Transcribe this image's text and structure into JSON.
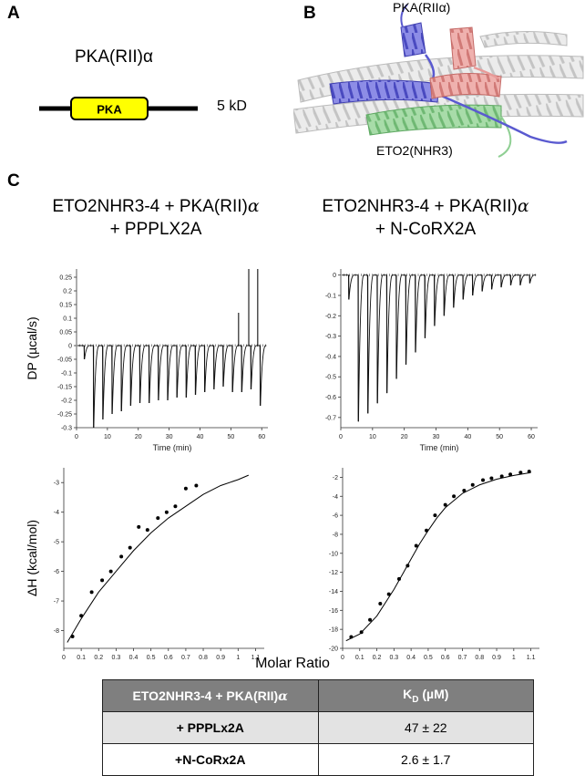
{
  "panels": {
    "a": {
      "letter": "A",
      "domain_title": "PKA(RII)α",
      "box_label": "PKA",
      "size_label": "5 kD",
      "box_color": "#ffff00"
    },
    "b": {
      "letter": "B",
      "label_top": "PKA(RIIα)",
      "label_bottom": "ETO2(NHR3)",
      "colors": {
        "pka_chain_1": "#6b6bd6",
        "pka_chain_2": "#e89a98",
        "eto2": "#8fcf93",
        "background_helices": "#d9d9d9"
      }
    },
    "c": {
      "letter": "C",
      "experiments": [
        {
          "line1": "ETO2NHR3-4 + PKA(RII)",
          "alpha": "α",
          "line2": "+ PPPLX2A"
        },
        {
          "line1": "ETO2NHR3-4 + PKA(RII)",
          "alpha": "α",
          "line2": "+ N-CoRX2A"
        }
      ]
    }
  },
  "chart_data": [
    {
      "type": "line",
      "title": "",
      "xlabel": "Time (min)",
      "ylabel": "DP (µcal/s)",
      "xlim": [
        0,
        62
      ],
      "ylim": [
        -0.3,
        0.28
      ],
      "xticks": [
        0,
        10,
        20,
        30,
        40,
        50,
        60
      ],
      "yticks": [
        -0.3,
        -0.25,
        -0.2,
        -0.15,
        -0.1,
        -0.05,
        0,
        0.05,
        0.1,
        0.15,
        0.2,
        0.25
      ],
      "ytick_labels": [
        "-0.3",
        "-0.25",
        "-0.2",
        "-0.15",
        "-0.1",
        "-0.05",
        "0",
        "0.05",
        "0.1",
        "0.15",
        "0.2",
        "0.25"
      ],
      "baseline": 0,
      "injection_times": [
        2.5,
        5.5,
        8.5,
        11.5,
        14.5,
        17.5,
        20.5,
        23.5,
        26.5,
        29.5,
        32.5,
        35.5,
        38.5,
        41.5,
        44.5,
        47.5,
        50.5,
        53.5,
        56.5,
        59.5
      ],
      "peak_values": [
        -0.05,
        -0.3,
        -0.27,
        -0.25,
        -0.24,
        -0.22,
        -0.21,
        -0.21,
        -0.2,
        -0.2,
        -0.19,
        -0.19,
        -0.18,
        -0.17,
        -0.16,
        -0.15,
        -0.17,
        -0.17,
        -0.16,
        -0.22
      ],
      "positive_spikes": [
        {
          "time": 52.5,
          "value": 0.12
        },
        {
          "time": 55.8,
          "value": 0.28
        },
        {
          "time": 58.7,
          "value": 0.28
        }
      ]
    },
    {
      "type": "line",
      "title": "",
      "xlabel": "Time (min)",
      "ylabel": "",
      "xlim": [
        0,
        62
      ],
      "ylim": [
        -0.75,
        0.03
      ],
      "xticks": [
        0,
        10,
        20,
        30,
        40,
        50,
        60
      ],
      "yticks": [
        -0.7,
        -0.6,
        -0.5,
        -0.4,
        -0.3,
        -0.2,
        -0.1,
        0
      ],
      "ytick_labels": [
        "-0.7",
        "-0.6",
        "-0.5",
        "-0.4",
        "-0.3",
        "-0.2",
        "-0.1",
        "0"
      ],
      "baseline": 0,
      "injection_times": [
        2.5,
        5.5,
        8.5,
        11.5,
        14.5,
        17.5,
        20.5,
        23.5,
        26.5,
        29.5,
        32.5,
        35.5,
        38.5,
        41.5,
        44.5,
        47.5,
        50.5,
        53.5,
        56.5,
        59.5
      ],
      "peak_values": [
        -0.12,
        -0.72,
        -0.68,
        -0.63,
        -0.58,
        -0.51,
        -0.44,
        -0.38,
        -0.31,
        -0.25,
        -0.2,
        -0.16,
        -0.12,
        -0.1,
        -0.08,
        -0.07,
        -0.06,
        -0.05,
        -0.05,
        -0.04
      ]
    },
    {
      "type": "scatter",
      "title": "",
      "xlabel": "Molar Ratio",
      "ylabel": "ΔH (kcal/mol)",
      "xlim": [
        0,
        1.15
      ],
      "ylim": [
        -8.6,
        -2.5
      ],
      "xticks": [
        0,
        0.1,
        0.2,
        0.3,
        0.4,
        0.5,
        0.6,
        0.7,
        0.8,
        0.9,
        1,
        1.1
      ],
      "xtick_labels": [
        "0",
        "0.1",
        "0.2",
        "0.3",
        "0.4",
        "0.5",
        "0.6",
        "0.7",
        "0.8",
        "0.9",
        "1",
        "1.1"
      ],
      "yticks": [
        -8,
        -7,
        -6,
        -5,
        -4,
        -3
      ],
      "ytick_labels": [
        "-8",
        "-7",
        "-6",
        "-5",
        "-4",
        "-3"
      ],
      "points": {
        "x": [
          0.05,
          0.1,
          0.16,
          0.22,
          0.27,
          0.33,
          0.38,
          0.43,
          0.48,
          0.54,
          0.59,
          0.64,
          0.7,
          0.76
        ],
        "y": [
          -8.2,
          -7.5,
          -6.7,
          -6.3,
          -6.0,
          -5.5,
          -5.2,
          -4.5,
          -4.6,
          -4.2,
          -4.0,
          -3.8,
          -3.2,
          -3.1
        ]
      },
      "fit": {
        "x": [
          0.02,
          0.1,
          0.2,
          0.3,
          0.4,
          0.5,
          0.6,
          0.7,
          0.8,
          0.9,
          1.0,
          1.06
        ],
        "y": [
          -8.4,
          -7.6,
          -6.7,
          -6.0,
          -5.3,
          -4.7,
          -4.2,
          -3.8,
          -3.4,
          -3.1,
          -2.9,
          -2.75
        ]
      }
    },
    {
      "type": "scatter",
      "title": "",
      "xlabel": "Molar Ratio",
      "ylabel": "",
      "xlim": [
        0,
        1.15
      ],
      "ylim": [
        -20,
        -1
      ],
      "xticks": [
        0,
        0.1,
        0.2,
        0.3,
        0.4,
        0.5,
        0.6,
        0.7,
        0.8,
        0.9,
        1,
        1.1
      ],
      "xtick_labels": [
        "0",
        "0.1",
        "0.2",
        "0.3",
        "0.4",
        "0.5",
        "0.6",
        "0.7",
        "0.8",
        "0.9",
        "1",
        "1.1"
      ],
      "yticks": [
        -20,
        -18,
        -16,
        -14,
        -12,
        -10,
        -8,
        -6,
        -4,
        -2
      ],
      "ytick_labels": [
        "-20",
        "-18",
        "-16",
        "-14",
        "-12",
        "-10",
        "-8",
        "-6",
        "-4",
        "-2"
      ],
      "points": {
        "x": [
          0.05,
          0.11,
          0.16,
          0.22,
          0.27,
          0.33,
          0.38,
          0.43,
          0.49,
          0.54,
          0.6,
          0.65,
          0.71,
          0.76,
          0.82,
          0.87,
          0.93,
          0.98,
          1.04,
          1.09
        ],
        "y": [
          -18.8,
          -18.3,
          -17.0,
          -15.3,
          -14.3,
          -12.7,
          -11.3,
          -9.2,
          -7.6,
          -6.0,
          -4.9,
          -4.0,
          -3.4,
          -2.8,
          -2.3,
          -2.1,
          -1.9,
          -1.7,
          -1.5,
          -1.4
        ]
      },
      "fit": {
        "x": [
          0.02,
          0.1,
          0.2,
          0.3,
          0.35,
          0.4,
          0.45,
          0.5,
          0.55,
          0.6,
          0.7,
          0.8,
          0.9,
          1.0,
          1.1
        ],
        "y": [
          -19.2,
          -18.5,
          -16.6,
          -13.8,
          -12.2,
          -10.6,
          -9.0,
          -7.6,
          -6.3,
          -5.2,
          -3.7,
          -2.8,
          -2.2,
          -1.8,
          -1.5
        ]
      }
    }
  ],
  "shared_xlabel": "Molar Ratio",
  "table": {
    "header": {
      "col1": "ETO2NHR3-4 + PKA(RII)",
      "col1_alpha": "α",
      "col2_main": "K",
      "col2_sub": "D",
      "col2_unit": " (µM)"
    },
    "rows": [
      {
        "name": "+ PPPLx2A",
        "kd": "47 ± 22"
      },
      {
        "name": "+N-CoRx2A",
        "kd": "2.6 ± 1.7"
      }
    ]
  }
}
